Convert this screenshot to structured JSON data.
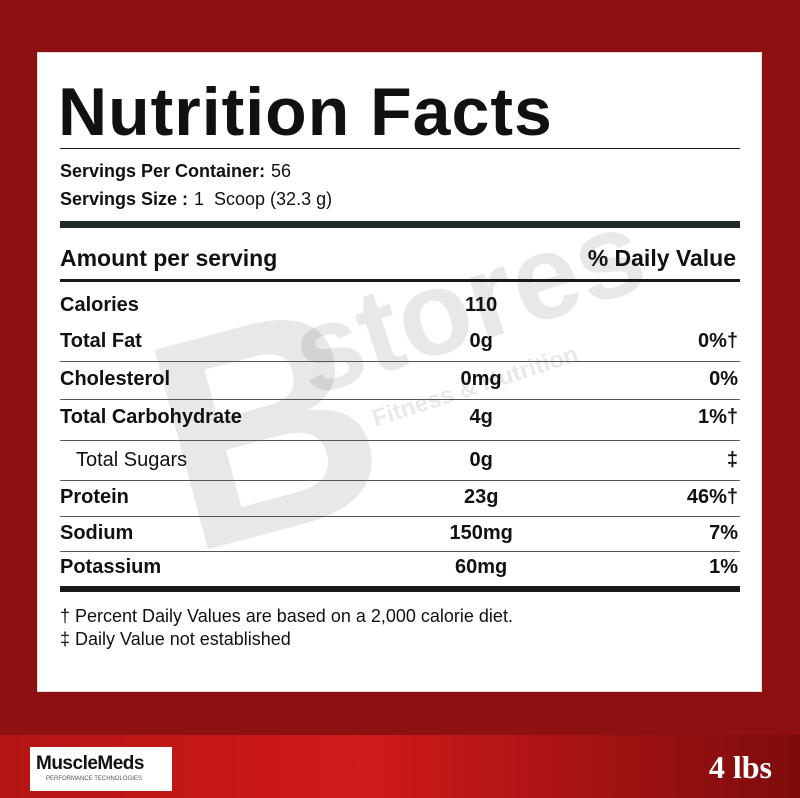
{
  "title": "Nutrition Facts",
  "servings": [
    {
      "label": "Servings Per Container:",
      "value": "56"
    },
    {
      "label": "Servings Size :",
      "value": "1  Scoop (32.3 g)"
    }
  ],
  "header": {
    "left": "Amount per serving",
    "right": "% Daily Value"
  },
  "rows": [
    [
      "Calories",
      "110",
      ""
    ],
    [
      "Total Fat",
      "0g",
      "0%†"
    ],
    [
      "Cholesterol",
      "0mg",
      "0%"
    ],
    [
      "Total Carbohydrate",
      "4g",
      "1%†"
    ],
    [
      "Total Sugars",
      "0g",
      "‡"
    ],
    [
      "Protein",
      "23g",
      "46%†"
    ],
    [
      "Sodium",
      "150mg",
      "7%"
    ],
    [
      "Potassium",
      "60mg",
      "1%"
    ]
  ],
  "footnotes": [
    "† Percent Daily Values are based on a 2,000 calorie diet.",
    "‡ Daily Value not established"
  ],
  "watermark": {
    "letter": "B",
    "word": "stores",
    "tagline": "Fitness & Nutrition"
  },
  "brand": {
    "name": "MuscleMeds",
    "tagline": "PERFORMANCE TECHNOLOGIES"
  },
  "size": "4 lbs"
}
